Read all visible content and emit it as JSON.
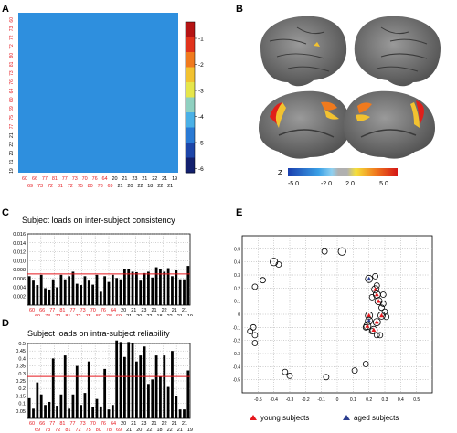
{
  "panels": {
    "A": {
      "label": "A",
      "matrix_tick_labels": {
        "red": [
          "60",
          "73",
          "72",
          "72",
          "80",
          "81",
          "73",
          "76",
          "64",
          "60",
          "69",
          "75",
          "77"
        ],
        "black": [
          "21",
          "22",
          "20",
          "21",
          "19"
        ]
      },
      "matrix_x_labels_top": [
        "60",
        "66",
        "77",
        "81",
        "77",
        "73",
        "70",
        "76",
        "64",
        "20",
        "21",
        "23",
        "21",
        "22",
        "21",
        "19"
      ],
      "matrix_x_labels_bottom": [
        "69",
        "73",
        "72",
        "81",
        "72",
        "75",
        "80",
        "78",
        "69",
        "21",
        "20",
        "22",
        "18",
        "22",
        "21"
      ],
      "colorbar_ticks": [
        "-1",
        "-2",
        "-3",
        "-4",
        "-5",
        "-6"
      ]
    },
    "B": {
      "label": "B",
      "colorbar": {
        "z_label": "Z",
        "ticks": [
          "-5.0",
          "-2.0",
          "2.0",
          "5.0"
        ]
      }
    },
    "C": {
      "label": "C",
      "title": "Subject loads on inter-subject consistency"
    },
    "D": {
      "label": "D",
      "title": "Subject loads on intra-subject reliability"
    },
    "E": {
      "label": "E",
      "legend": {
        "young": "young subjects",
        "aged": "aged subjects"
      }
    }
  },
  "chart_data": [
    {
      "id": "C",
      "type": "bar",
      "title": "Subject loads on inter-subject consistency",
      "ylim": [
        0,
        0.016
      ],
      "yticks": [
        "0.016",
        "0.014",
        "0.012",
        "0.010",
        "0.008",
        "0.006",
        "0.004",
        "0.002"
      ],
      "ref_line": 0.007,
      "values": [
        0.0065,
        0.0055,
        0.0045,
        0.0068,
        0.0038,
        0.0035,
        0.0058,
        0.004,
        0.0068,
        0.0058,
        0.0065,
        0.0075,
        0.0048,
        0.0045,
        0.0065,
        0.0055,
        0.0046,
        0.0068,
        0.003,
        0.0065,
        0.0052,
        0.0068,
        0.0061,
        0.0058,
        0.008,
        0.0082,
        0.0075,
        0.0074,
        0.0055,
        0.0072,
        0.0075,
        0.0062,
        0.0085,
        0.0082,
        0.0075,
        0.0083,
        0.0065,
        0.0078,
        0.0058,
        0.0058,
        0.0088
      ],
      "x_labels_top": [
        "60",
        "66",
        "77",
        "81",
        "77",
        "73",
        "70",
        "76",
        "64",
        "20",
        "21",
        "23",
        "21",
        "22",
        "21",
        "21"
      ],
      "x_labels_bottom": [
        "69",
        "73",
        "72",
        "81",
        "72",
        "75",
        "80",
        "78",
        "69",
        "21",
        "20",
        "22",
        "18",
        "22",
        "21",
        "19"
      ],
      "grid": true
    },
    {
      "id": "D",
      "type": "bar",
      "title": "Subject loads on intra-subject reliability",
      "ylim": [
        0,
        0.5
      ],
      "yticks": [
        "0.5",
        "0.45",
        "0.4",
        "0.35",
        "0.3",
        "0.25",
        "0.2",
        "0.15",
        "0.1",
        "0.05"
      ],
      "ref_line": 0.28,
      "values": [
        0.135,
        0.065,
        0.24,
        0.16,
        0.09,
        0.11,
        0.4,
        0.085,
        0.16,
        0.42,
        0.065,
        0.16,
        0.35,
        0.09,
        0.17,
        0.38,
        0.075,
        0.13,
        0.08,
        0.33,
        0.06,
        0.09,
        0.52,
        0.51,
        0.41,
        0.51,
        0.5,
        0.38,
        0.42,
        0.48,
        0.23,
        0.26,
        0.42,
        0.28,
        0.42,
        0.21,
        0.45,
        0.15,
        0.06,
        0.06,
        0.32
      ],
      "x_labels_top": [
        "60",
        "66",
        "77",
        "81",
        "77",
        "73",
        "70",
        "76",
        "64",
        "20",
        "21",
        "23",
        "21",
        "22",
        "21",
        "21"
      ],
      "x_labels_bottom": [
        "69",
        "73",
        "72",
        "81",
        "72",
        "75",
        "80",
        "78",
        "69",
        "21",
        "20",
        "22",
        "18",
        "22",
        "21",
        "19"
      ],
      "grid": true
    },
    {
      "id": "E",
      "type": "scatter",
      "xlim": [
        -0.6,
        0.6
      ],
      "ylim": [
        -0.6,
        0.6
      ],
      "xticks": [
        "-0.5",
        "-0.4",
        "-0.3",
        "-0.2",
        "-0.1",
        "0",
        "0.1",
        "0.2",
        "0.3",
        "0.4",
        "0.5"
      ],
      "yticks": [
        "0.5",
        "0.4",
        "0.3",
        "0.2",
        "0.1",
        "0",
        "-0.1",
        "-0.2",
        "-0.3",
        "-0.4",
        "-0.5"
      ],
      "points_open": [
        [
          -0.47,
          0.26
        ],
        [
          -0.52,
          0.21
        ],
        [
          -0.4,
          0.4
        ],
        [
          -0.37,
          0.38
        ],
        [
          -0.08,
          0.48
        ],
        [
          0.03,
          0.48
        ],
        [
          -0.53,
          -0.1
        ],
        [
          -0.55,
          -0.13
        ],
        [
          -0.52,
          -0.16
        ],
        [
          -0.52,
          -0.22
        ],
        [
          -0.33,
          -0.44
        ],
        [
          -0.3,
          -0.47
        ],
        [
          -0.07,
          -0.48
        ],
        [
          0.11,
          -0.43
        ],
        [
          0.18,
          -0.38
        ],
        [
          0.24,
          0.29
        ],
        [
          0.25,
          0.22
        ],
        [
          0.29,
          0.15
        ],
        [
          0.22,
          0.13
        ],
        [
          0.29,
          0.08
        ],
        [
          0.28,
          0.05
        ],
        [
          0.3,
          0.02
        ],
        [
          0.31,
          -0.02
        ],
        [
          0.18,
          -0.1
        ],
        [
          0.22,
          -0.13
        ],
        [
          0.25,
          -0.16
        ],
        [
          0.27,
          -0.16
        ]
      ],
      "points_young": [
        [
          0.24,
          0.19
        ],
        [
          0.25,
          0.15
        ],
        [
          0.26,
          0.1
        ],
        [
          0.28,
          -0.01
        ],
        [
          0.2,
          -0.01
        ],
        [
          0.25,
          -0.06
        ],
        [
          0.19,
          -0.09
        ],
        [
          0.23,
          -0.12
        ]
      ],
      "points_aged": [
        [
          0.2,
          0.27
        ],
        [
          0.2,
          -0.05
        ]
      ],
      "grid": true
    }
  ],
  "colors": {
    "bar": "#000000",
    "ref_line": "#e5181e",
    "young": "#e5181e",
    "aged": "#2b3d8f",
    "matrix_base": "#2e8fde",
    "diag": "#c8161c",
    "red_label": "#e5181e"
  }
}
